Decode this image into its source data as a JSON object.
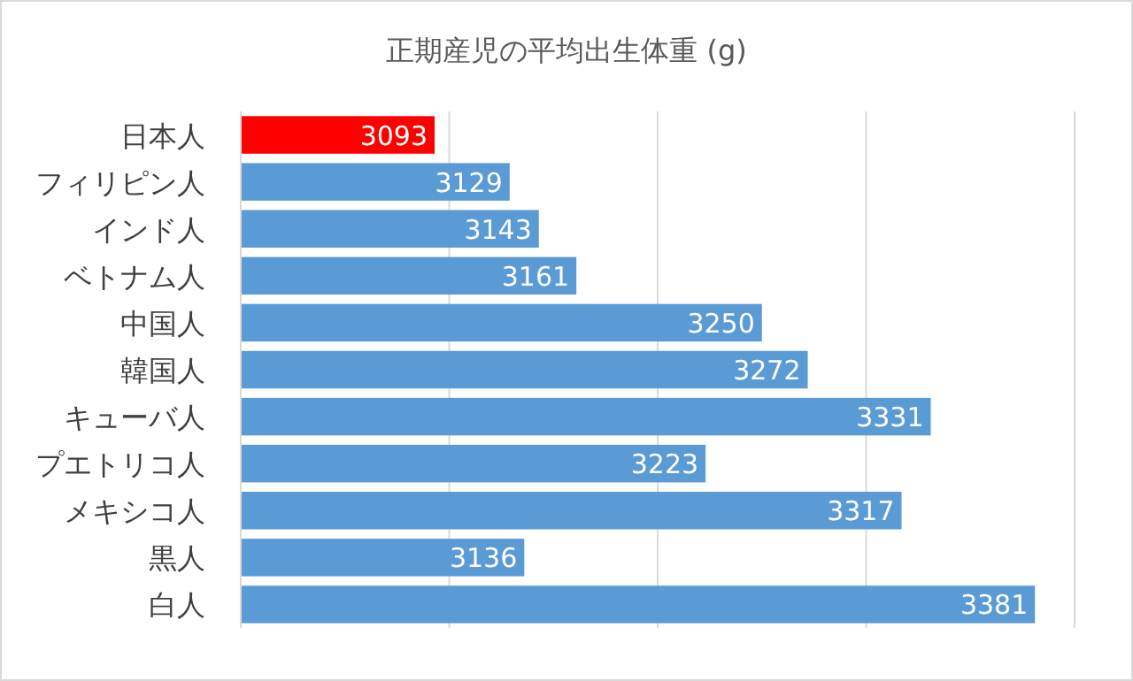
{
  "chart_data": {
    "type": "bar",
    "orientation": "horizontal",
    "title": "正期産児の平均出生体重 (g)",
    "categories": [
      "日本人",
      "フィリピン人",
      "インド人",
      "ベトナム人",
      "中国人",
      "韓国人",
      "キューバ人",
      "プエトリコ人",
      "メキシコ人",
      "黒人",
      "白人"
    ],
    "values": [
      3093,
      3129,
      3143,
      3161,
      3250,
      3272,
      3331,
      3223,
      3317,
      3136,
      3381
    ],
    "colors": [
      "#ff0000",
      "#5b9bd5",
      "#5b9bd5",
      "#5b9bd5",
      "#5b9bd5",
      "#5b9bd5",
      "#5b9bd5",
      "#5b9bd5",
      "#5b9bd5",
      "#5b9bd5",
      "#5b9bd5"
    ],
    "xlim": [
      3000,
      3400
    ],
    "xticks": [
      {
        "value": 3000,
        "label": null
      },
      {
        "value": 3100,
        "label": null
      },
      {
        "value": 3200,
        "label": null
      },
      {
        "value": 3300,
        "label": null
      },
      {
        "value": 3400,
        "label": null
      }
    ],
    "grid": "x",
    "data_labels": true,
    "tick_labels": "y"
  }
}
